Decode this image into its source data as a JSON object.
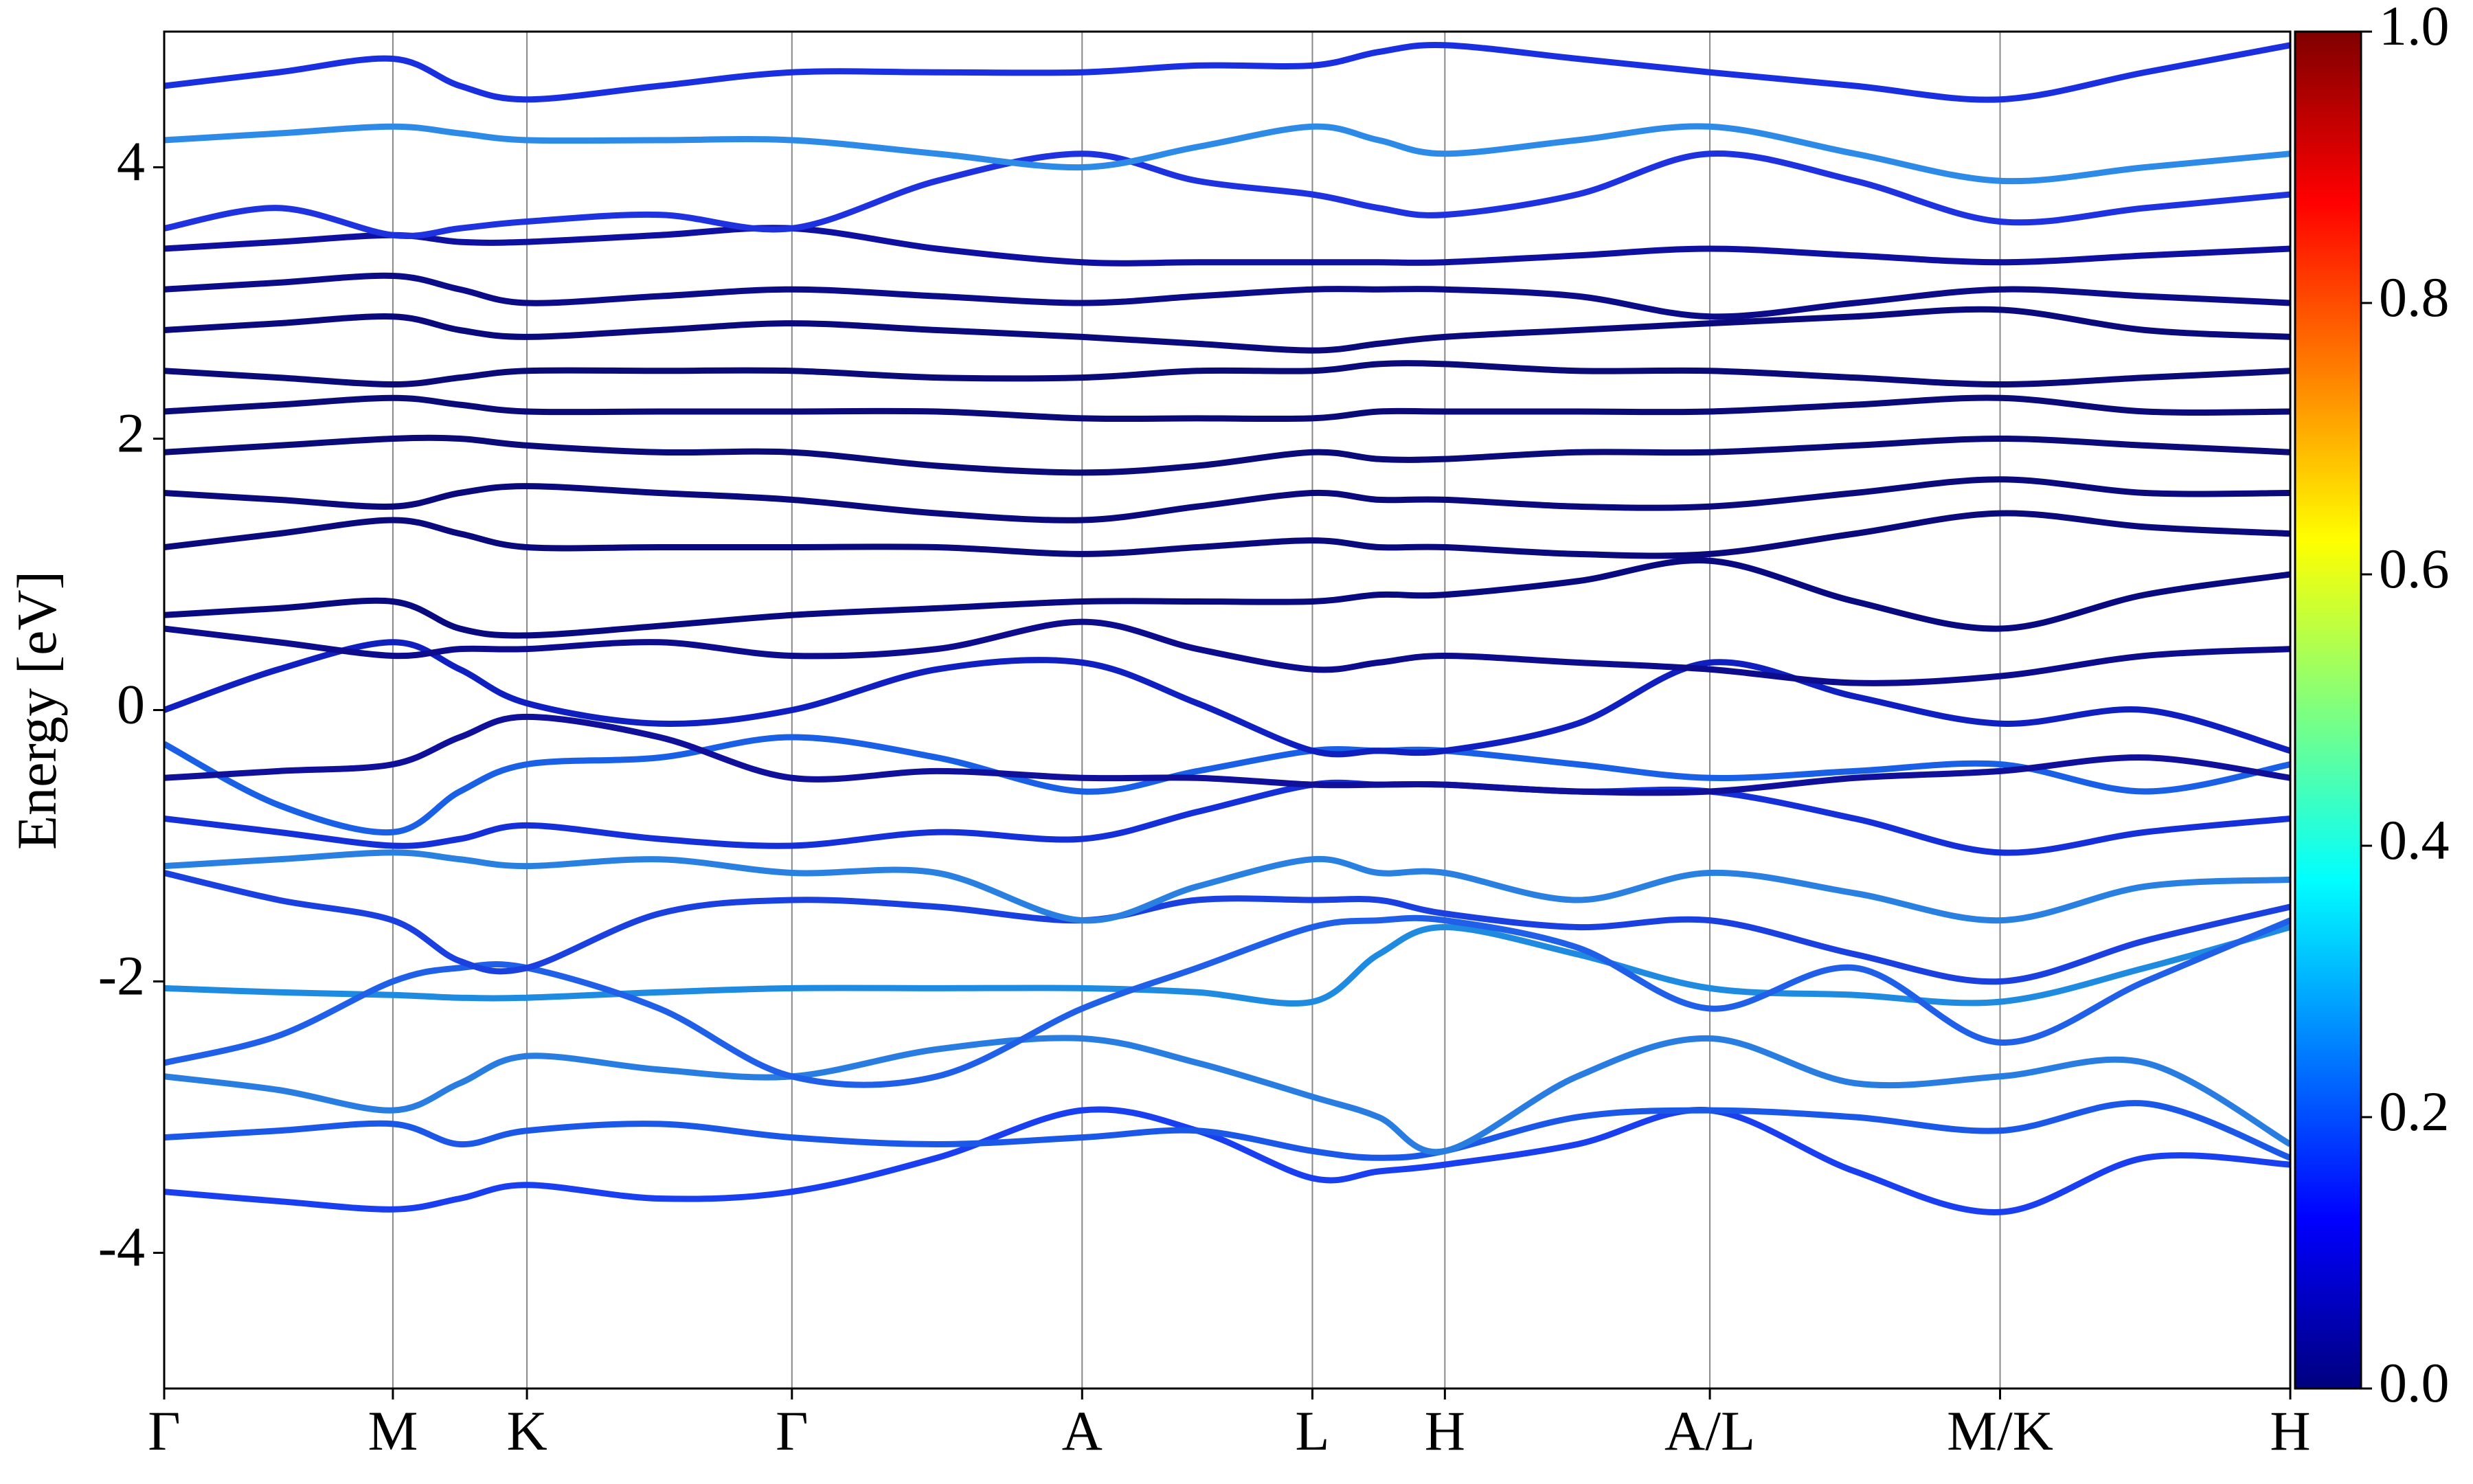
{
  "chart_data": {
    "type": "line",
    "ylabel": "Energy [eV]",
    "xlim": [
      0,
      13.48
    ],
    "ylim": [
      -5,
      5
    ],
    "xticks": [
      {
        "value": 0,
        "label": "Γ"
      },
      {
        "value": 1.45,
        "label": "M"
      },
      {
        "value": 2.3,
        "label": "K"
      },
      {
        "value": 3.98,
        "label": "Γ"
      },
      {
        "value": 5.82,
        "label": "A"
      },
      {
        "value": 7.28,
        "label": "L"
      },
      {
        "value": 8.12,
        "label": "H"
      },
      {
        "value": 9.8,
        "label": "A/L"
      },
      {
        "value": 11.64,
        "label": "M/K"
      },
      {
        "value": 13.48,
        "label": "H"
      }
    ],
    "yticks": [
      -4,
      -2,
      0,
      2,
      4
    ],
    "grid": true,
    "x": [
      0,
      0.725,
      1.45,
      1.875,
      2.3,
      3.14,
      3.98,
      4.9,
      5.82,
      6.55,
      7.28,
      7.7,
      8.12,
      8.96,
      9.8,
      10.72,
      11.64,
      12.56,
      13.48
    ],
    "series": [
      {
        "color": "#1a3ff0",
        "values": [
          -3.55,
          -3.62,
          -3.68,
          -3.6,
          -3.5,
          -3.6,
          -3.55,
          -3.3,
          -2.95,
          -3.1,
          -3.45,
          -3.4,
          -3.35,
          -3.2,
          -2.95,
          -3.4,
          -3.7,
          -3.3,
          -3.35
        ]
      },
      {
        "color": "#1c58e8",
        "values": [
          -3.15,
          -3.1,
          -3.05,
          -3.2,
          -3.1,
          -3.05,
          -3.15,
          -3.2,
          -3.15,
          -3.1,
          -3.25,
          -3.3,
          -3.25,
          -3.0,
          -2.95,
          -3.0,
          -3.1,
          -2.9,
          -3.3
        ]
      },
      {
        "color": "#2a7de0",
        "values": [
          -2.7,
          -2.8,
          -2.95,
          -2.75,
          -2.55,
          -2.65,
          -2.7,
          -2.5,
          -2.42,
          -2.6,
          -2.85,
          -3.0,
          -3.25,
          -2.7,
          -2.42,
          -2.75,
          -2.7,
          -2.6,
          -3.2
        ]
      },
      {
        "color": "#1e8be0",
        "values": [
          -2.05,
          -2.08,
          -2.1,
          -2.12,
          -2.12,
          -2.08,
          -2.05,
          -2.05,
          -2.05,
          -2.08,
          -2.15,
          -1.8,
          -1.6,
          -1.8,
          -2.05,
          -2.1,
          -2.15,
          -1.9,
          -1.6
        ]
      },
      {
        "color": "#2060e8",
        "values": [
          -2.6,
          -2.4,
          -2.0,
          -1.9,
          -1.9,
          -2.2,
          -2.7,
          -2.7,
          -2.2,
          -1.9,
          -1.6,
          -1.55,
          -1.55,
          -1.75,
          -2.2,
          -1.9,
          -2.45,
          -2.0,
          -1.55
        ]
      },
      {
        "color": "#1a40e0",
        "values": [
          -1.2,
          -1.4,
          -1.55,
          -1.85,
          -1.9,
          -1.5,
          -1.4,
          -1.45,
          -1.55,
          -1.4,
          -1.4,
          -1.4,
          -1.5,
          -1.6,
          -1.55,
          -1.8,
          -2.0,
          -1.7,
          -1.45
        ]
      },
      {
        "color": "#2a80e0",
        "values": [
          -1.15,
          -1.1,
          -1.05,
          -1.1,
          -1.15,
          -1.1,
          -1.2,
          -1.2,
          -1.55,
          -1.3,
          -1.1,
          -1.2,
          -1.2,
          -1.4,
          -1.2,
          -1.35,
          -1.55,
          -1.3,
          -1.25
        ]
      },
      {
        "color": "#1530d8",
        "values": [
          -0.8,
          -0.9,
          -1.0,
          -0.95,
          -0.85,
          -0.95,
          -1.0,
          -0.9,
          -0.95,
          -0.75,
          -0.55,
          -0.55,
          -0.55,
          -0.6,
          -0.6,
          -0.8,
          -1.05,
          -0.9,
          -0.8
        ]
      },
      {
        "color": "#1a60e6",
        "values": [
          -0.25,
          -0.7,
          -0.9,
          -0.6,
          -0.4,
          -0.35,
          -0.2,
          -0.35,
          -0.6,
          -0.45,
          -0.3,
          -0.3,
          -0.3,
          -0.4,
          -0.5,
          -0.45,
          -0.4,
          -0.6,
          -0.4
        ]
      },
      {
        "color": "#10109a",
        "values": [
          -0.5,
          -0.45,
          -0.4,
          -0.2,
          -0.05,
          -0.2,
          -0.5,
          -0.45,
          -0.5,
          -0.5,
          -0.55,
          -0.55,
          -0.55,
          -0.6,
          -0.6,
          -0.5,
          -0.45,
          -0.35,
          -0.5
        ]
      },
      {
        "color": "#1020c0",
        "values": [
          0.0,
          0.3,
          0.5,
          0.3,
          0.05,
          -0.1,
          0.0,
          0.3,
          0.35,
          0.05,
          -0.3,
          -0.3,
          -0.3,
          -0.1,
          0.35,
          0.1,
          -0.1,
          0.0,
          -0.3
        ]
      },
      {
        "color": "#0c0c8c",
        "values": [
          0.6,
          0.5,
          0.4,
          0.45,
          0.45,
          0.5,
          0.4,
          0.45,
          0.65,
          0.45,
          0.3,
          0.35,
          0.4,
          0.35,
          0.3,
          0.2,
          0.25,
          0.4,
          0.45
        ]
      },
      {
        "color": "#0a0a80",
        "values": [
          0.7,
          0.75,
          0.8,
          0.6,
          0.55,
          0.62,
          0.7,
          0.75,
          0.8,
          0.8,
          0.8,
          0.85,
          0.85,
          0.95,
          1.1,
          0.8,
          0.6,
          0.85,
          1.0
        ]
      },
      {
        "color": "#0a0a7c",
        "values": [
          1.2,
          1.3,
          1.4,
          1.3,
          1.2,
          1.2,
          1.2,
          1.2,
          1.15,
          1.2,
          1.25,
          1.2,
          1.2,
          1.15,
          1.15,
          1.3,
          1.45,
          1.35,
          1.3
        ]
      },
      {
        "color": "#0a0a7c",
        "values": [
          1.6,
          1.55,
          1.5,
          1.6,
          1.65,
          1.6,
          1.55,
          1.45,
          1.4,
          1.5,
          1.6,
          1.55,
          1.55,
          1.5,
          1.5,
          1.6,
          1.7,
          1.6,
          1.6
        ]
      },
      {
        "color": "#0a0a78",
        "values": [
          1.9,
          1.95,
          2.0,
          2.0,
          1.95,
          1.9,
          1.9,
          1.8,
          1.75,
          1.8,
          1.9,
          1.85,
          1.85,
          1.9,
          1.9,
          1.95,
          2.0,
          1.95,
          1.9
        ]
      },
      {
        "color": "#0a0a78",
        "values": [
          2.2,
          2.25,
          2.3,
          2.25,
          2.2,
          2.2,
          2.2,
          2.2,
          2.15,
          2.15,
          2.15,
          2.2,
          2.2,
          2.2,
          2.2,
          2.25,
          2.3,
          2.2,
          2.2
        ]
      },
      {
        "color": "#0a0a78",
        "values": [
          2.5,
          2.45,
          2.4,
          2.45,
          2.5,
          2.5,
          2.5,
          2.45,
          2.45,
          2.5,
          2.5,
          2.55,
          2.55,
          2.5,
          2.5,
          2.45,
          2.4,
          2.45,
          2.5
        ]
      },
      {
        "color": "#0a0a7c",
        "values": [
          2.8,
          2.85,
          2.9,
          2.8,
          2.75,
          2.8,
          2.85,
          2.8,
          2.75,
          2.7,
          2.65,
          2.7,
          2.75,
          2.8,
          2.85,
          2.9,
          2.95,
          2.8,
          2.75
        ]
      },
      {
        "color": "#0c0c88",
        "values": [
          3.1,
          3.15,
          3.2,
          3.1,
          3.0,
          3.05,
          3.1,
          3.05,
          3.0,
          3.05,
          3.1,
          3.1,
          3.1,
          3.05,
          2.9,
          3.0,
          3.1,
          3.05,
          3.0
        ]
      },
      {
        "color": "#1010a0",
        "values": [
          3.4,
          3.45,
          3.5,
          3.45,
          3.45,
          3.5,
          3.55,
          3.4,
          3.3,
          3.3,
          3.3,
          3.3,
          3.3,
          3.35,
          3.4,
          3.35,
          3.3,
          3.35,
          3.4
        ]
      },
      {
        "color": "#1e32e0",
        "values": [
          3.55,
          3.7,
          3.5,
          3.55,
          3.6,
          3.65,
          3.55,
          3.9,
          4.1,
          3.9,
          3.8,
          3.7,
          3.65,
          3.8,
          4.1,
          3.9,
          3.6,
          3.7,
          3.8
        ]
      },
      {
        "color": "#2d8ae6",
        "values": [
          4.2,
          4.25,
          4.3,
          4.25,
          4.2,
          4.2,
          4.2,
          4.1,
          4.0,
          4.15,
          4.3,
          4.2,
          4.1,
          4.2,
          4.3,
          4.1,
          3.9,
          4.0,
          4.1
        ]
      },
      {
        "color": "#1a30e0",
        "values": [
          4.6,
          4.7,
          4.8,
          4.6,
          4.5,
          4.6,
          4.7,
          4.7,
          4.7,
          4.75,
          4.75,
          4.85,
          4.9,
          4.8,
          4.7,
          4.6,
          4.5,
          4.7,
          4.9
        ]
      }
    ],
    "colorbar": {
      "lim": [
        0,
        1
      ],
      "colors": [
        "#00007f",
        "#0000ff",
        "#007fff",
        "#00ffff",
        "#7fff7f",
        "#ffff00",
        "#ff7f00",
        "#ff0000",
        "#7f0000"
      ],
      "ticks": [
        {
          "value": 0,
          "label": "0.0"
        },
        {
          "value": 0.2,
          "label": "0.2"
        },
        {
          "value": 0.4,
          "label": "0.4"
        },
        {
          "value": 0.6,
          "label": "0.6"
        },
        {
          "value": 0.8,
          "label": "0.8"
        },
        {
          "value": 1,
          "label": "1.0"
        }
      ]
    }
  }
}
